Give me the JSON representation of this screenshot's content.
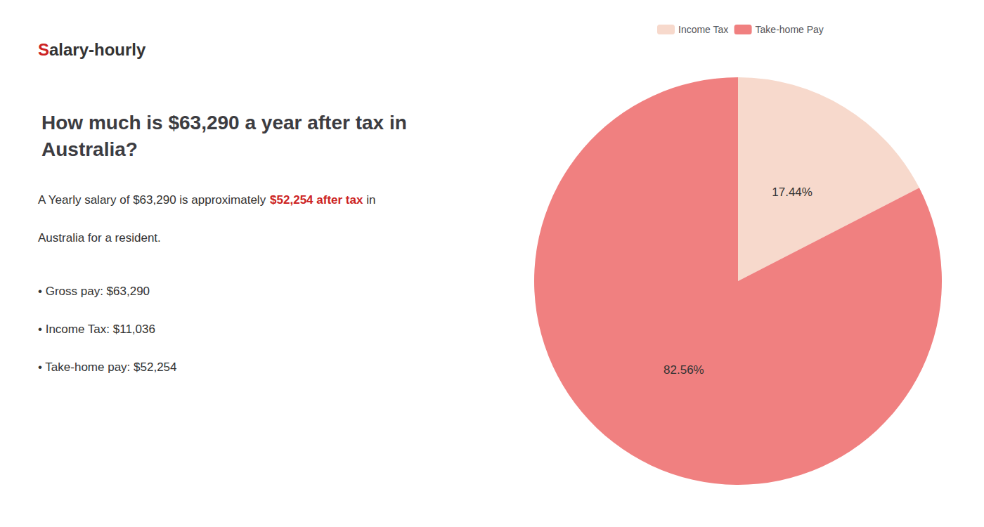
{
  "chart_data": {
    "type": "pie",
    "title": "How much is $63,290 a year after tax in\nAustralia?",
    "categories": [
      "Income Tax",
      "Take-home Pay"
    ],
    "values": [
      17.44,
      82.56
    ],
    "value_labels": [
      "17.44%",
      "82.56%"
    ],
    "colors": [
      "#f7d9cc",
      "#f08080"
    ],
    "data_labels": true,
    "legend": "top",
    "annotations": [
      [
        {
          "text": "S",
          "color": "#cc2222"
        },
        {
          "text": "alary-hourly"
        }
      ],
      [
        {
          "text": "A Yearly salary of $63,290 is approximately "
        },
        {
          "text": "$52,254 after tax",
          "color": "#cc2222"
        },
        {
          "text": " in"
        }
      ],
      [
        {
          "text": "Australia for a resident."
        }
      ],
      [
        {
          "text": "• Gross pay: $63,290"
        }
      ],
      [
        {
          "text": "• Income Tax: $11,036"
        }
      ],
      [
        {
          "text": "• Take-home pay: $52,254"
        }
      ]
    ]
  }
}
